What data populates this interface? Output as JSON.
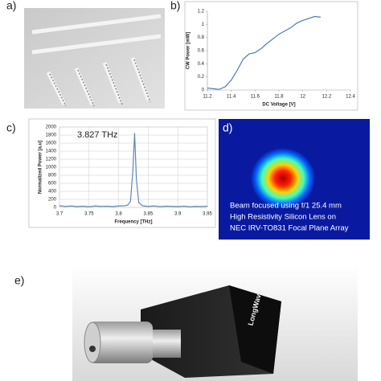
{
  "panel_labels": [
    "a)",
    "b)",
    "c)",
    "d)",
    "e)"
  ],
  "beam_text": [
    "Beam focused using f/1 25.4 mm",
    "High Resistivity Silicon Lens on",
    "NEC IRV-TO831 Focal Plane Array"
  ],
  "logo": "LongWave",
  "chart_data": [
    {
      "type": "line",
      "x_label": "DC Voltage [V]",
      "y_label": "CW Power [mW]",
      "x": [
        11.2,
        11.25,
        11.3,
        11.35,
        11.4,
        11.45,
        11.5,
        11.55,
        11.6,
        11.65,
        11.7,
        11.75,
        11.8,
        11.85,
        11.9,
        11.95,
        12.0,
        12.05,
        12.1,
        12.15
      ],
      "series": [
        {
          "color": "#4f78b4",
          "values": [
            0.03,
            0.02,
            0.01,
            0.05,
            0.15,
            0.3,
            0.47,
            0.55,
            0.57,
            0.63,
            0.71,
            0.78,
            0.85,
            0.9,
            0.95,
            1.02,
            1.06,
            1.09,
            1.12,
            1.11
          ]
        }
      ],
      "xlim": [
        11.2,
        12.4
      ],
      "xticks": [
        11.2,
        11.4,
        11.6,
        11.8,
        12,
        12.2,
        12.4
      ],
      "ylim": [
        0,
        1.2
      ],
      "yticks": [
        0,
        0.2,
        0.4,
        0.6,
        0.8,
        1,
        1.2
      ],
      "grid": false
    },
    {
      "type": "line",
      "x_label": "Frequency [THz]",
      "y_label": "Normalized Power [a.u]",
      "annotation": "3.827 THz",
      "x": [
        3.7,
        3.71,
        3.72,
        3.73,
        3.74,
        3.75,
        3.76,
        3.77,
        3.78,
        3.79,
        3.8,
        3.81,
        3.815,
        3.82,
        3.824,
        3.827,
        3.83,
        3.834,
        3.84,
        3.85,
        3.86,
        3.87,
        3.88,
        3.89,
        3.9,
        3.91,
        3.92,
        3.93,
        3.94,
        3.95
      ],
      "series": [
        {
          "color": "#5f86b8",
          "values": [
            40,
            25,
            35,
            20,
            30,
            15,
            35,
            25,
            30,
            20,
            35,
            40,
            55,
            150,
            900,
            1850,
            700,
            120,
            40,
            25,
            35,
            20,
            30,
            25,
            20,
            30,
            15,
            25,
            20,
            30
          ]
        }
      ],
      "xlim": [
        3.7,
        3.95
      ],
      "xticks": [
        3.7,
        3.75,
        3.8,
        3.85,
        3.9,
        3.95
      ],
      "ylim": [
        0,
        2000
      ],
      "yticks": [
        0,
        200,
        400,
        600,
        800,
        1000,
        1200,
        1400,
        1600,
        1800,
        2000
      ],
      "grid": true
    }
  ]
}
